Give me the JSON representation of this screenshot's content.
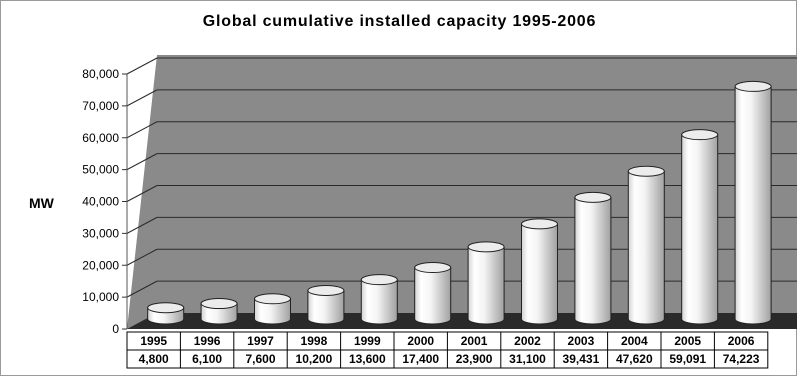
{
  "chart_data": {
    "type": "bar",
    "title": "Global cumulative installed capacity 1995-2006",
    "ylabel": "MW",
    "xlabel": "",
    "ylim": [
      0,
      80000
    ],
    "y_ticks": [
      "0",
      "10,000",
      "20,000",
      "30,000",
      "40,000",
      "50,000",
      "60,000",
      "70,000",
      "80,000"
    ],
    "categories": [
      "1995",
      "1996",
      "1997",
      "1998",
      "1999",
      "2000",
      "2001",
      "2002",
      "2003",
      "2004",
      "2005",
      "2006"
    ],
    "values": [
      4800,
      6100,
      7600,
      10200,
      13600,
      17400,
      23900,
      31100,
      39431,
      47620,
      59091,
      74223
    ],
    "value_labels": [
      "4,800",
      "6,100",
      "7,600",
      "10,200",
      "13,600",
      "17,400",
      "23,900",
      "31,100",
      "39,431",
      "47,620",
      "59,091",
      "74,223"
    ],
    "grid": true,
    "legend": "none",
    "data_table": true,
    "colors": {
      "back_wall": "#8a8a8a",
      "floor": "#2a2a2a",
      "gridline": "#2a2a2a",
      "bar_light": "#ffffff",
      "bar_dark": "#a8a8a8"
    }
  }
}
